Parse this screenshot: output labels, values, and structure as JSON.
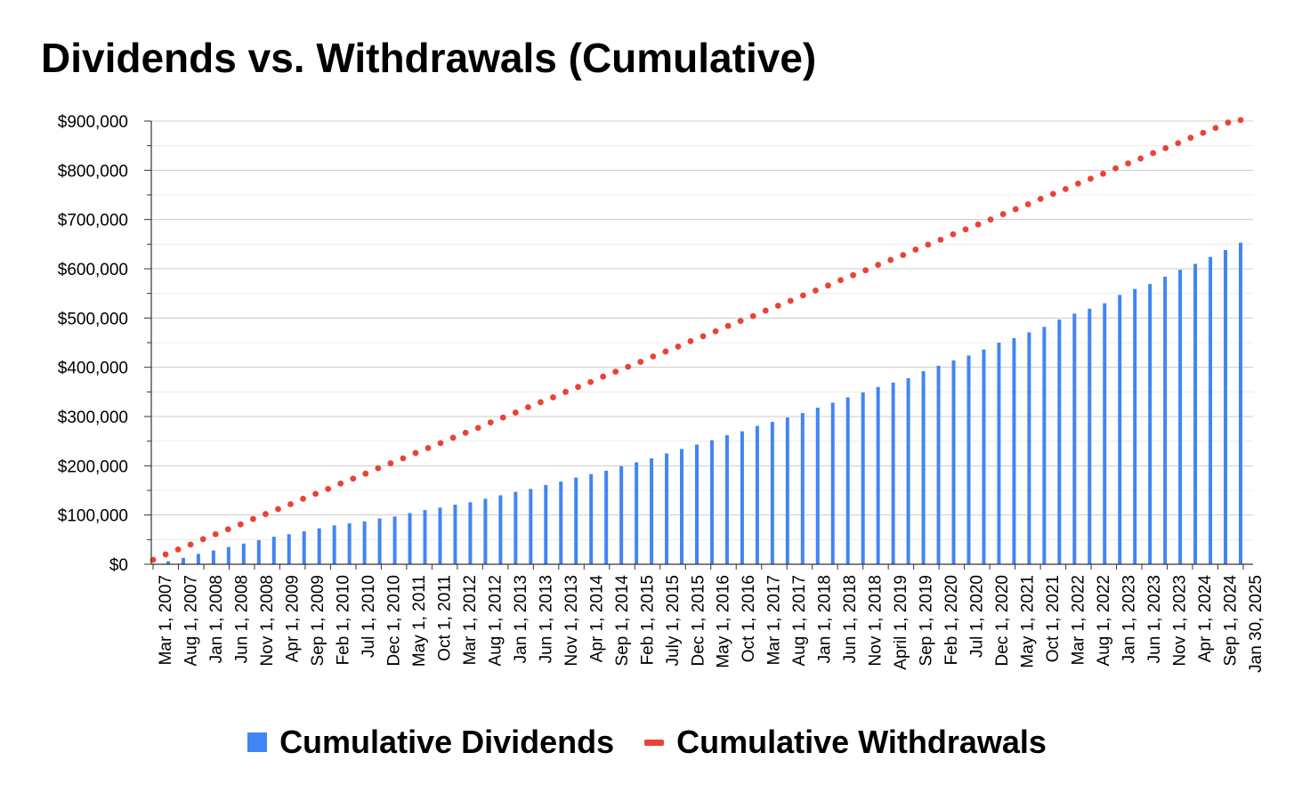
{
  "chart_data": {
    "type": "bar",
    "title": "Dividends vs. Withdrawals (Cumulative)",
    "xlabel": "",
    "ylabel": "",
    "ylim": [
      0,
      900000
    ],
    "y_ticks": [
      0,
      100000,
      200000,
      300000,
      400000,
      500000,
      600000,
      700000,
      800000,
      900000
    ],
    "y_tick_labels": [
      "$0",
      "$100,000",
      "$200,000",
      "$300,000",
      "$400,000",
      "$500,000",
      "$600,000",
      "$700,000",
      "$800,000",
      "$900,000"
    ],
    "x_tick_labels": [
      "Mar 1, 2007",
      "Aug 1, 2007",
      "Jan 1, 2008",
      "Jun 1, 2008",
      "Nov 1, 2008",
      "Apr 1, 2009",
      "Sep 1, 2009",
      "Feb 1, 2010",
      "Jul 1, 2010",
      "Dec 1, 2010",
      "May 1, 2011",
      "Oct 1, 2011",
      "Mar 1, 2012",
      "Aug 1, 2012",
      "Jan 1, 2013",
      "Jun 1, 2013",
      "Nov 1, 2013",
      "Apr 1, 2014",
      "Sep 1, 2014",
      "Feb 1, 2015",
      "July 1, 2015",
      "Dec 1, 2015",
      "May 1, 2016",
      "Oct 1, 2016",
      "Mar 1, 2017",
      "Aug 1, 2017",
      "Jan 1, 2018",
      "Jun 1, 2018",
      "Nov 1, 2018",
      "April 1, 2019",
      "Sep 1, 2019",
      "Feb 1, 2020",
      "Jul 1, 2020",
      "Dec 1, 2020",
      "May 1, 2021",
      "Oct 1, 2021",
      "Mar 1, 2022",
      "Aug 1, 2022",
      "Jan 1, 2023",
      "Jun 1, 2023",
      "Nov 1, 2023",
      "Apr 1, 2024",
      "Sep 1, 2024",
      "Jan 30, 2025"
    ],
    "grid": true,
    "legend_position": "bottom",
    "series": [
      {
        "name": "Cumulative Dividends",
        "type": "bar",
        "color": "#4285f4",
        "values": [
          0,
          6000,
          13000,
          21000,
          28000,
          35000,
          42000,
          49000,
          56000,
          61000,
          67000,
          73000,
          79000,
          83000,
          87000,
          93000,
          97000,
          104000,
          110000,
          115000,
          121000,
          126000,
          133000,
          140000,
          147000,
          153000,
          161000,
          168000,
          176000,
          183000,
          190000,
          199000,
          207000,
          215000,
          225000,
          234000,
          243000,
          252000,
          262000,
          270000,
          281000,
          289000,
          298000,
          307000,
          318000,
          328000,
          339000,
          349000,
          360000,
          369000,
          378000,
          392000,
          403000,
          414000,
          424000,
          436000,
          450000,
          459000,
          471000,
          482000,
          497000,
          509000,
          519000,
          530000,
          547000,
          559000,
          569000,
          584000,
          598000,
          610000,
          624000,
          638000,
          653000
        ]
      },
      {
        "name": "Cumulative Withdrawals",
        "type": "dotted-line",
        "color": "#ea4335",
        "values": [
          9000,
          20000,
          30000,
          40000,
          51000,
          61000,
          71000,
          81000,
          92000,
          102000,
          112000,
          122000,
          133000,
          143000,
          153000,
          164000,
          174000,
          184000,
          195000,
          205000,
          215000,
          226000,
          236000,
          246000,
          257000,
          267000,
          277000,
          288000,
          298000,
          308000,
          319000,
          329000,
          339000,
          350000,
          360000,
          370000,
          381000,
          391000,
          401000,
          411000,
          422000,
          432000,
          442000,
          453000,
          463000,
          473000,
          484000,
          494000,
          504000,
          515000,
          525000,
          535000,
          546000,
          556000,
          566000,
          577000,
          587000,
          597000,
          608000,
          618000,
          628000,
          639000,
          649000,
          659000,
          670000,
          680000,
          690000,
          700000,
          711000,
          721000,
          731000,
          742000,
          752000,
          762000,
          773000,
          783000,
          793000,
          804000,
          814000,
          824000,
          835000,
          845000,
          855000,
          866000,
          876000,
          886000,
          897000,
          902000
        ]
      }
    ]
  }
}
